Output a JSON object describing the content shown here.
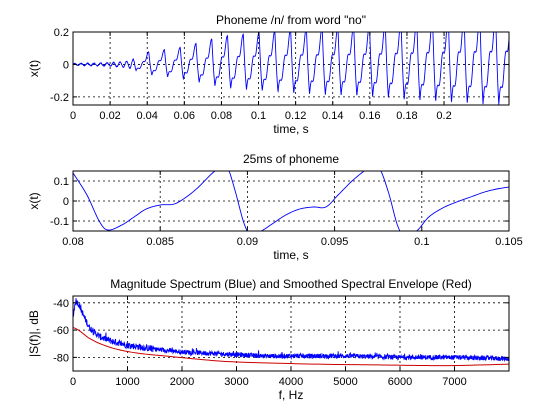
{
  "chart_data": [
    {
      "type": "line",
      "title": "Phoneme /n/ from word \"no\"",
      "xlabel": "time, s",
      "ylabel": "x(t)",
      "xlim": [
        0,
        0.235
      ],
      "ylim": [
        -0.25,
        0.2
      ],
      "xticks": [
        0,
        0.02,
        0.04,
        0.06,
        0.08,
        0.1,
        0.12,
        0.14,
        0.16,
        0.18,
        0.2
      ],
      "xtick_labels": [
        "0",
        "0.02",
        "0.04",
        "0.06",
        "0.08",
        "0.1",
        "0.12",
        "0.14",
        "0.16",
        "0.18",
        "0.2"
      ],
      "yticks": [
        -0.2,
        0,
        0.2
      ],
      "ytick_labels": [
        "-0.2",
        "0",
        "0.2"
      ],
      "grid": true,
      "line_color": "#0000ff",
      "series": [
        {
          "pitch_period_s": 0.0085,
          "onset_s": 0.034,
          "x": [
            0,
            0.02,
            0.03,
            0.04,
            0.06,
            0.08,
            0.1,
            0.12,
            0.14,
            0.16,
            0.18,
            0.2,
            0.235
          ],
          "amplitude": [
            0.005,
            0.01,
            0.02,
            0.07,
            0.1,
            0.16,
            0.18,
            0.2,
            0.21,
            0.22,
            0.24,
            0.26,
            0.28
          ]
        }
      ]
    },
    {
      "type": "line",
      "title": "25ms of phoneme",
      "xlabel": "time, s",
      "ylabel": "x(t)",
      "xlim": [
        0.08,
        0.105
      ],
      "ylim": [
        -0.15,
        0.15
      ],
      "xticks": [
        0.08,
        0.085,
        0.09,
        0.095,
        0.1,
        0.105
      ],
      "xtick_labels": [
        "0.08",
        "0.085",
        "0.09",
        "0.095",
        "0.1",
        "0.105"
      ],
      "yticks": [
        -0.1,
        0,
        0.1
      ],
      "ytick_labels": [
        "-0.1",
        "0",
        "0.1"
      ],
      "grid": true,
      "line_color": "#0000ff",
      "series": [
        {
          "x": [
            0.08,
            0.0808,
            0.0815,
            0.082,
            0.0828,
            0.0835,
            0.0842,
            0.085,
            0.0858,
            0.0865,
            0.0872,
            0.088,
            0.0886,
            0.0889,
            0.0893,
            0.0898,
            0.0902,
            0.0908,
            0.0915,
            0.0922,
            0.093,
            0.0938,
            0.0945,
            0.0952,
            0.096,
            0.0967,
            0.0972,
            0.0976,
            0.0981,
            0.0986,
            0.099,
            0.0997,
            0.1004,
            0.1012,
            0.102,
            0.1028,
            0.1036,
            0.1043,
            0.105
          ],
          "y": [
            0.14,
            0.03,
            -0.1,
            -0.145,
            -0.12,
            -0.08,
            -0.04,
            -0.02,
            -0.015,
            0.02,
            0.07,
            0.14,
            0.175,
            0.16,
            0.05,
            -0.11,
            -0.17,
            -0.15,
            -0.11,
            -0.07,
            -0.04,
            -0.03,
            -0.03,
            0.03,
            0.1,
            0.15,
            0.175,
            0.16,
            0.04,
            -0.12,
            -0.17,
            -0.15,
            -0.08,
            -0.035,
            -0.005,
            0.02,
            0.045,
            0.06,
            0.07
          ]
        }
      ]
    },
    {
      "type": "line",
      "title": "Magnitude Spectrum (Blue) and Smoothed Spectral Envelope (Red)",
      "xlabel": "f, Hz",
      "ylabel": "|S(f)|, dB",
      "xlim": [
        0,
        8000
      ],
      "ylim": [
        -90,
        -35
      ],
      "xticks": [
        0,
        1000,
        2000,
        3000,
        4000,
        5000,
        6000,
        7000
      ],
      "xtick_labels": [
        "0",
        "1000",
        "2000",
        "3000",
        "4000",
        "5000",
        "6000",
        "7000"
      ],
      "yticks": [
        -80,
        -60,
        -40
      ],
      "ytick_labels": [
        "-80",
        "-60",
        "-40"
      ],
      "grid": true,
      "series": [
        {
          "color": "#0000ff",
          "x": [
            0,
            50,
            120,
            200,
            300,
            400,
            500,
            700,
            1000,
            1500,
            2000,
            2500,
            3000,
            3500,
            4000,
            5000,
            6000,
            7000,
            8000
          ],
          "y": [
            -50,
            -38,
            -42,
            -50,
            -58,
            -62,
            -65,
            -68,
            -71,
            -74,
            -76,
            -77,
            -78,
            -79,
            -79,
            -79,
            -80,
            -80,
            -81
          ]
        },
        {
          "color": "#cc0000",
          "x": [
            0,
            100,
            200,
            300,
            500,
            800,
            1200,
            1700,
            2200,
            2800,
            3500,
            4500,
            5500,
            6500,
            7000,
            8000
          ],
          "y": [
            -58,
            -60,
            -63,
            -66,
            -70,
            -74,
            -77,
            -79,
            -81,
            -83,
            -84,
            -85,
            -85.5,
            -86,
            -86,
            -85
          ]
        }
      ]
    }
  ]
}
